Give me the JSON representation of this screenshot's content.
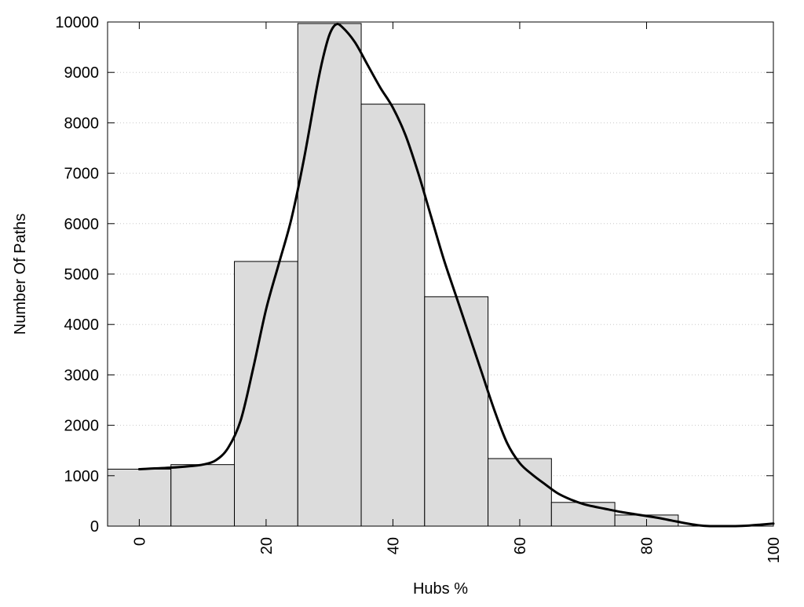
{
  "chart_data": {
    "type": "bar",
    "title": "",
    "xlabel": "Hubs %",
    "ylabel": "Number Of Paths",
    "xlim": [
      -5,
      100
    ],
    "ylim": [
      0,
      10000
    ],
    "xticks": [
      0,
      20,
      40,
      60,
      80,
      100
    ],
    "yticks": [
      0,
      1000,
      2000,
      3000,
      4000,
      5000,
      6000,
      7000,
      8000,
      9000,
      10000
    ],
    "bin_width": 10,
    "bins": [
      {
        "center": 0,
        "value": 1130
      },
      {
        "center": 10,
        "value": 1220
      },
      {
        "center": 20,
        "value": 5250
      },
      {
        "center": 30,
        "value": 9970
      },
      {
        "center": 40,
        "value": 8370
      },
      {
        "center": 50,
        "value": 4550
      },
      {
        "center": 60,
        "value": 1340
      },
      {
        "center": 70,
        "value": 470
      },
      {
        "center": 80,
        "value": 220
      }
    ],
    "curve": {
      "x": [
        0,
        5,
        8,
        10,
        12,
        14,
        16,
        18,
        20,
        22,
        24,
        26,
        28,
        29,
        30,
        31,
        32,
        34,
        36,
        38,
        40,
        42,
        44,
        46,
        48,
        50,
        52,
        54,
        56,
        58,
        60,
        62,
        64,
        66,
        68,
        70,
        72,
        74,
        76,
        78,
        80,
        82,
        84,
        86,
        88,
        90,
        92,
        94,
        96,
        98,
        100
      ],
      "y": [
        1130,
        1160,
        1190,
        1220,
        1300,
        1550,
        2100,
        3150,
        4300,
        5200,
        6100,
        7300,
        8700,
        9300,
        9750,
        9950,
        9900,
        9600,
        9150,
        8700,
        8300,
        7750,
        7000,
        6150,
        5300,
        4550,
        3800,
        3050,
        2300,
        1650,
        1250,
        1020,
        830,
        650,
        530,
        440,
        380,
        330,
        280,
        240,
        200,
        160,
        110,
        60,
        20,
        0,
        0,
        0,
        10,
        30,
        50
      ]
    },
    "grid": {
      "x": false,
      "y": true,
      "style": "dotted"
    },
    "series": [],
    "colors": {
      "bar_fill": "#dcdcdc",
      "bar_stroke": "#000000",
      "curve": "#000000",
      "grid": "#c8c8c8"
    }
  }
}
